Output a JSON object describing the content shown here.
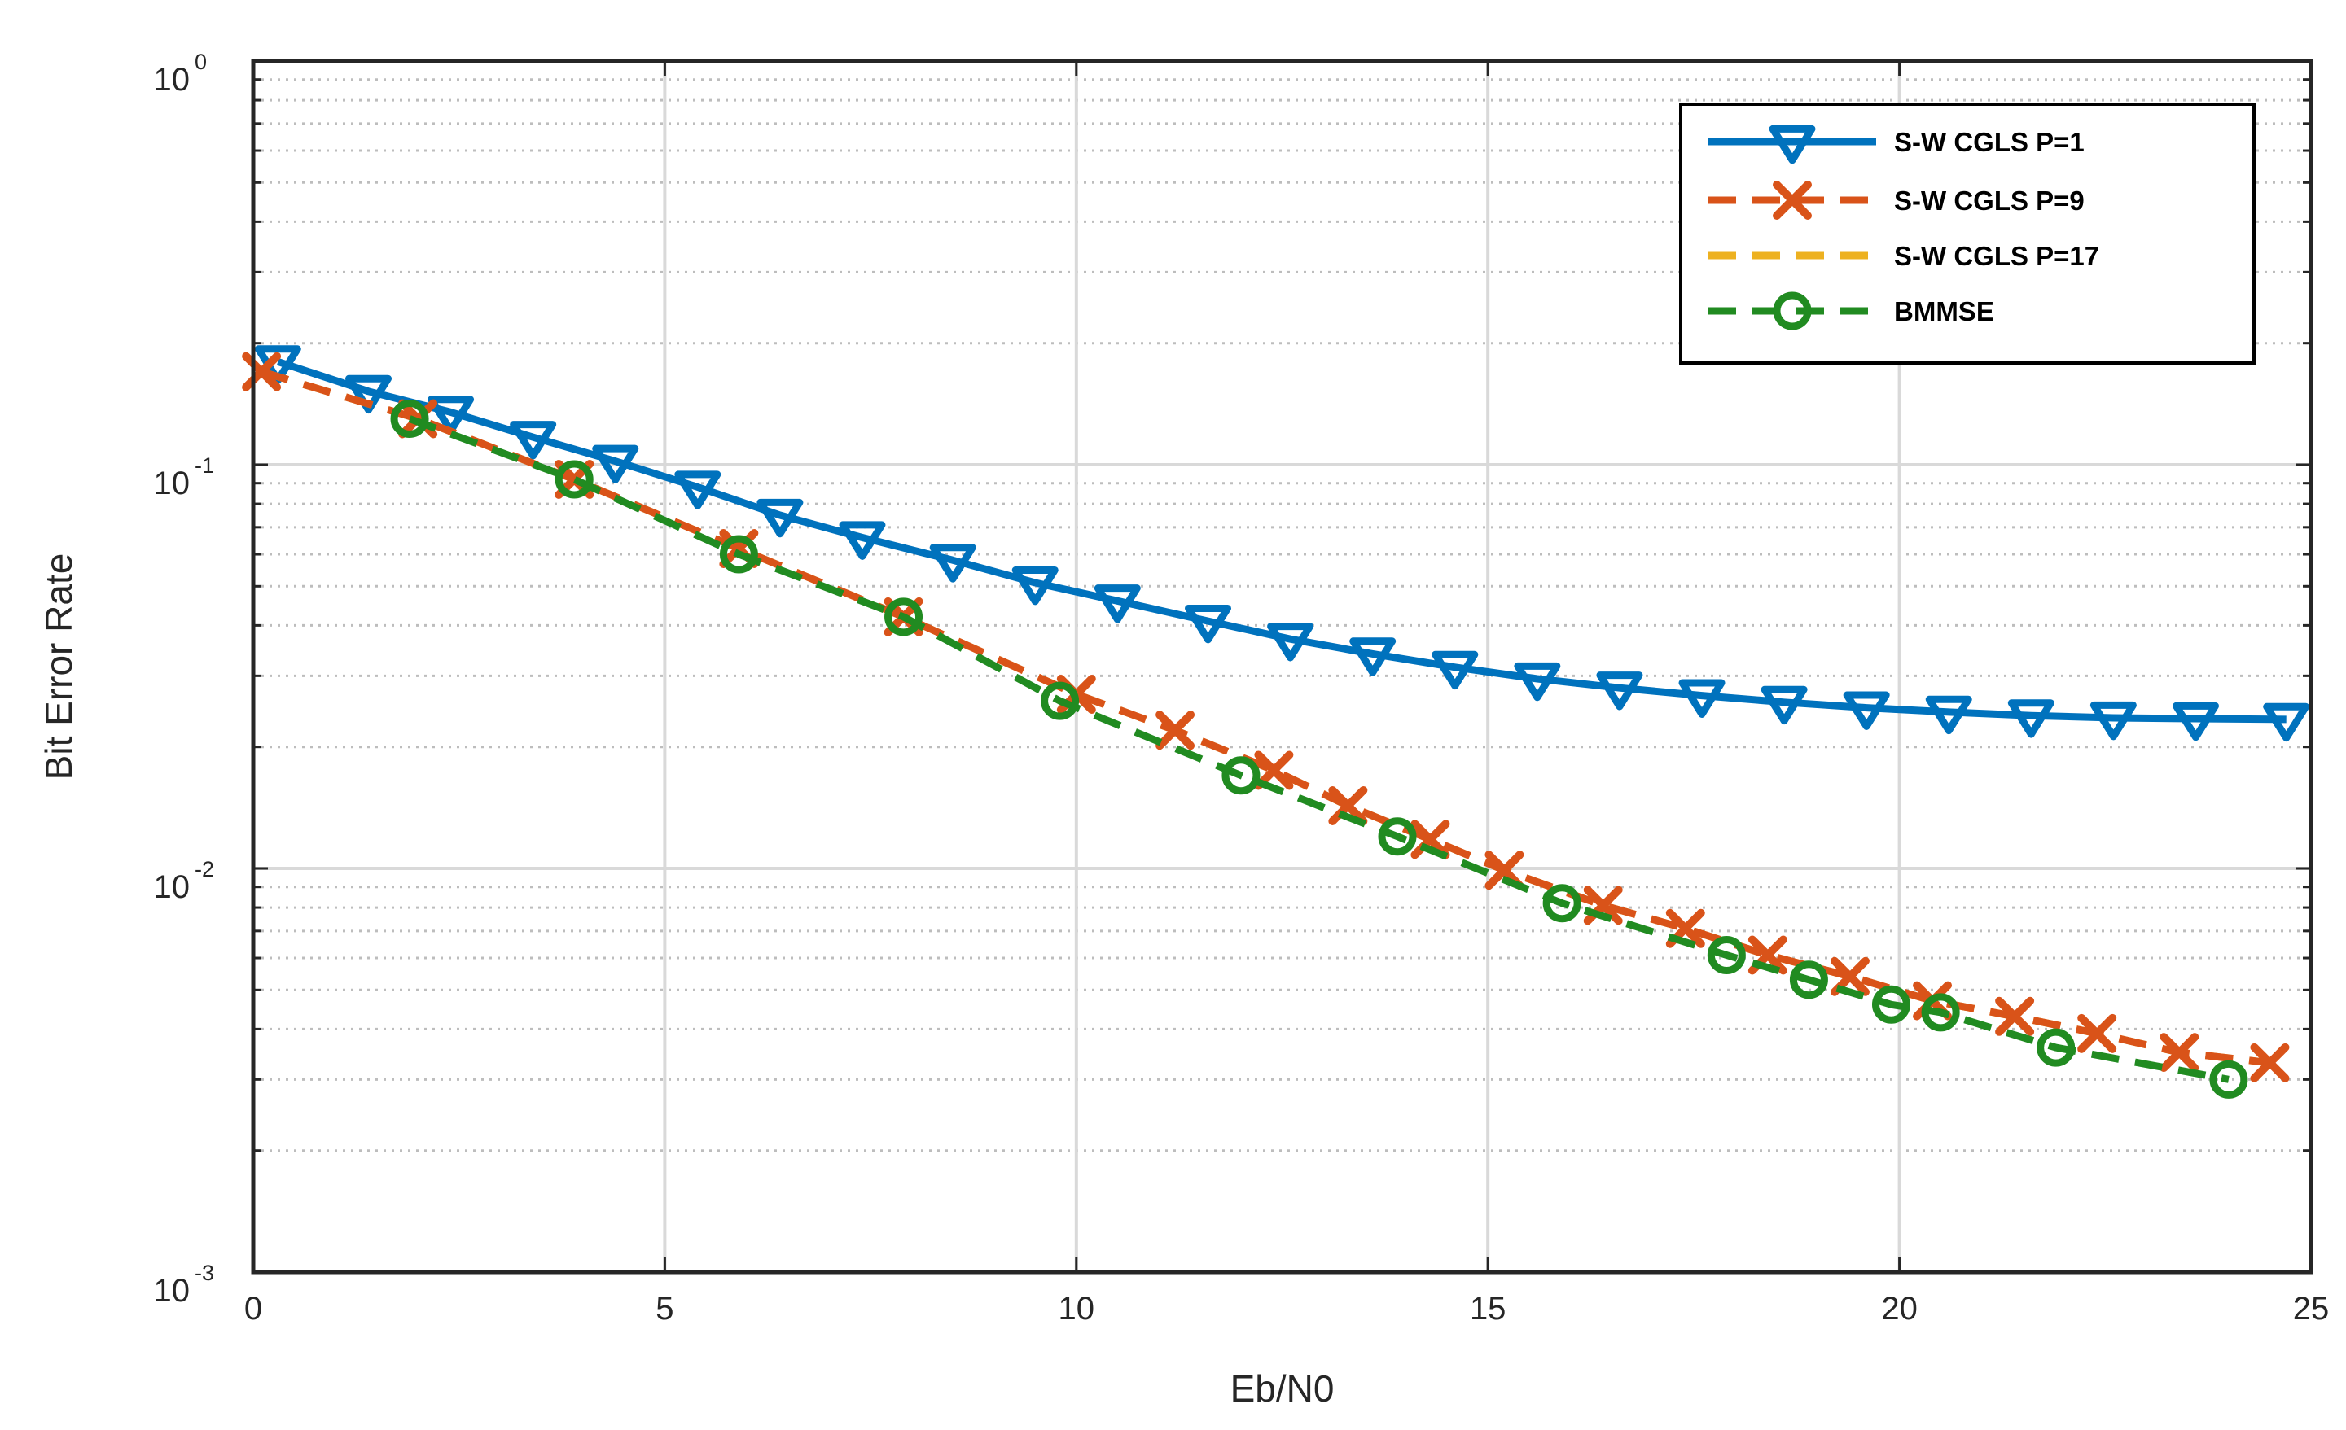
{
  "chart_data": {
    "type": "line",
    "xlabel": "Eb/N0",
    "ylabel": "Bit Error Rate",
    "xlim": [
      0,
      25
    ],
    "ylim": [
      0.001,
      1
    ],
    "yscale": "log",
    "grid": true,
    "legend_position": "top-right",
    "x_ticks": [
      "0",
      "5",
      "10",
      "15",
      "20",
      "25"
    ],
    "y_ticks": [
      {
        "base": "10",
        "exp": "-3",
        "value": 0.001
      },
      {
        "base": "10",
        "exp": "-2",
        "value": 0.01
      },
      {
        "base": "10",
        "exp": "-1",
        "value": 0.1
      },
      {
        "base": "10",
        "exp": "0",
        "value": 1
      }
    ],
    "series": [
      {
        "name": "S-W CGLS P=1",
        "color": "#0072BD",
        "line": "solid",
        "marker": "triangle-down",
        "x": [
          0.3,
          1.4,
          2.4,
          3.4,
          4.4,
          5.4,
          6.4,
          7.4,
          8.5,
          9.5,
          10.5,
          11.6,
          12.6,
          13.6,
          14.6,
          15.6,
          16.6,
          17.6,
          18.6,
          19.6,
          20.6,
          21.6,
          22.6,
          23.6,
          24.7
        ],
        "y": [
          0.18,
          0.152,
          0.135,
          0.117,
          0.102,
          0.088,
          0.075,
          0.066,
          0.058,
          0.051,
          0.046,
          0.041,
          0.037,
          0.034,
          0.0315,
          0.0295,
          0.028,
          0.0268,
          0.0258,
          0.025,
          0.0244,
          0.0239,
          0.0236,
          0.0235,
          0.0234
        ]
      },
      {
        "name": "S-W CGLS P=9",
        "color": "#D95319",
        "line": "dashed",
        "marker": "x",
        "x": [
          0.1,
          2.0,
          3.9,
          5.9,
          7.9,
          10.0,
          11.2,
          12.4,
          13.3,
          14.3,
          15.2,
          16.4,
          17.4,
          18.4,
          19.4,
          20.4,
          21.4,
          22.4,
          23.4,
          24.5
        ],
        "y": [
          0.17,
          0.13,
          0.092,
          0.062,
          0.042,
          0.027,
          0.022,
          0.0175,
          0.0143,
          0.0118,
          0.0099,
          0.0081,
          0.0071,
          0.0061,
          0.0054,
          0.0047,
          0.0043,
          0.0039,
          0.0035,
          0.0033
        ]
      },
      {
        "name": "S-W CGLS P=17",
        "color": "#EDB120",
        "line": "dashed",
        "marker": "none",
        "x": [
          0.1,
          2.0,
          3.9,
          5.9,
          7.9,
          10.0,
          11.2,
          12.4,
          13.3,
          14.3,
          15.2,
          16.4,
          17.4,
          18.4,
          19.4,
          20.4,
          21.4,
          22.4,
          23.4,
          24.5
        ],
        "y": [
          0.17,
          0.13,
          0.092,
          0.062,
          0.042,
          0.027,
          0.022,
          0.0175,
          0.0143,
          0.0118,
          0.0099,
          0.0081,
          0.0071,
          0.0061,
          0.0054,
          0.0047,
          0.0043,
          0.0039,
          0.0035,
          0.0033
        ]
      },
      {
        "name": "BMMSE",
        "color": "#218B21",
        "line": "dashed",
        "marker": "circle",
        "x": [
          1.9,
          3.9,
          5.9,
          7.9,
          9.8,
          12.0,
          13.9,
          15.9,
          17.9,
          18.9,
          19.9,
          20.5,
          21.9,
          24.0
        ],
        "y": [
          0.13,
          0.092,
          0.06,
          0.042,
          0.026,
          0.017,
          0.012,
          0.0082,
          0.0061,
          0.0053,
          0.0046,
          0.0044,
          0.0036,
          0.003
        ]
      }
    ]
  }
}
